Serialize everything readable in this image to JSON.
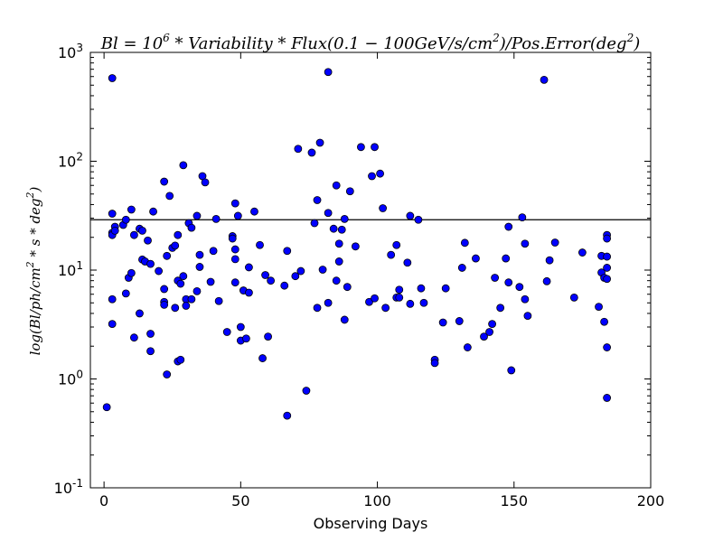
{
  "chart_data": {
    "type": "scatter",
    "title": "Bl=10^6*Variability*Flux(0.1-100GeV/s/cm^2)/Pos.Error(deg^2)",
    "title_parts": {
      "a": "Bl = 10",
      "a_sup": "6",
      "b": " * Variability * Flux(0.1 − 100GeV/s/cm",
      "b_sup": "2",
      "c": ")/Pos.Error(deg",
      "c_sup": "2",
      "d": ")"
    },
    "xlabel": "Observing Days",
    "ylabel": "log(Bl/ph/cm^2*s*deg^2)",
    "ylabel_parts": {
      "a": "log(Bl/ph/cm",
      "a_sup": "2",
      "b": " * s * deg",
      "b_sup": "2",
      "c": ")"
    },
    "xlim": [
      -5,
      200
    ],
    "ylim": [
      0.1,
      1000
    ],
    "yscale": "log",
    "xticks": [
      {
        "v": 0,
        "label": "0"
      },
      {
        "v": 50,
        "label": "50"
      },
      {
        "v": 100,
        "label": "100"
      },
      {
        "v": 150,
        "label": "150"
      },
      {
        "v": 200,
        "label": "200"
      }
    ],
    "yticks": [
      {
        "v": 0.1,
        "base": "10",
        "exp": "-1"
      },
      {
        "v": 1,
        "base": "10",
        "exp": "0"
      },
      {
        "v": 10,
        "base": "10",
        "exp": "1"
      },
      {
        "v": 100,
        "base": "10",
        "exp": "2"
      },
      {
        "v": 1000,
        "base": "10",
        "exp": "3"
      }
    ],
    "hline": 29,
    "marker_color": "#0000ff",
    "line_color": "#000000",
    "points": [
      [
        1,
        0.55
      ],
      [
        3,
        580
      ],
      [
        3,
        33
      ],
      [
        3,
        22
      ],
      [
        3,
        21
      ],
      [
        3,
        5.4
      ],
      [
        3,
        3.2
      ],
      [
        4,
        25
      ],
      [
        4,
        23
      ],
      [
        7,
        26
      ],
      [
        8,
        29
      ],
      [
        8,
        6.1
      ],
      [
        9,
        8.5
      ],
      [
        10,
        9.4
      ],
      [
        10,
        36
      ],
      [
        11,
        21
      ],
      [
        11,
        2.4
      ],
      [
        13,
        24
      ],
      [
        13,
        4.0
      ],
      [
        14,
        23
      ],
      [
        14,
        12.5
      ],
      [
        15,
        12
      ],
      [
        16,
        18.7
      ],
      [
        17,
        11.4
      ],
      [
        17,
        2.6
      ],
      [
        17,
        1.8
      ],
      [
        18,
        34.5
      ],
      [
        20,
        9.8
      ],
      [
        22,
        65
      ],
      [
        22,
        6.7
      ],
      [
        22,
        5.1
      ],
      [
        22,
        4.8
      ],
      [
        23,
        1.1
      ],
      [
        23,
        13.5
      ],
      [
        24,
        48
      ],
      [
        25,
        16
      ],
      [
        26,
        16.8
      ],
      [
        26,
        4.5
      ],
      [
        27,
        21
      ],
      [
        27,
        8
      ],
      [
        27,
        1.45
      ],
      [
        28,
        7.5
      ],
      [
        28,
        1.5
      ],
      [
        29,
        92
      ],
      [
        29,
        8.8
      ],
      [
        30,
        5.4
      ],
      [
        30,
        4.7
      ],
      [
        31,
        27
      ],
      [
        32,
        5.4
      ],
      [
        32,
        24.5
      ],
      [
        34,
        31.5
      ],
      [
        34,
        6.4
      ],
      [
        35,
        10.7
      ],
      [
        35,
        13.8
      ],
      [
        36,
        73
      ],
      [
        37,
        64
      ],
      [
        39,
        7.8
      ],
      [
        40,
        15
      ],
      [
        41,
        29.5
      ],
      [
        42,
        5.2
      ],
      [
        45,
        2.7
      ],
      [
        47,
        20.5
      ],
      [
        47,
        19.5
      ],
      [
        48,
        41
      ],
      [
        48,
        15.5
      ],
      [
        48,
        12.6
      ],
      [
        48,
        7.7
      ],
      [
        49,
        31.5
      ],
      [
        50,
        3.0
      ],
      [
        50,
        2.25
      ],
      [
        51,
        6.5
      ],
      [
        52,
        2.35
      ],
      [
        53,
        10.6
      ],
      [
        53,
        6.2
      ],
      [
        55,
        34.5
      ],
      [
        57,
        17
      ],
      [
        58,
        1.55
      ],
      [
        59,
        9
      ],
      [
        60,
        2.45
      ],
      [
        61,
        8
      ],
      [
        66,
        7.2
      ],
      [
        67,
        0.46
      ],
      [
        67,
        15
      ],
      [
        70,
        8.8
      ],
      [
        71,
        130
      ],
      [
        72,
        9.8
      ],
      [
        74,
        0.78
      ],
      [
        76,
        120
      ],
      [
        77,
        27
      ],
      [
        78,
        44
      ],
      [
        78,
        4.5
      ],
      [
        79,
        148
      ],
      [
        80,
        10.1
      ],
      [
        82,
        660
      ],
      [
        82,
        33.5
      ],
      [
        82,
        5
      ],
      [
        84,
        24
      ],
      [
        85,
        8
      ],
      [
        85,
        60
      ],
      [
        86,
        17.5
      ],
      [
        86,
        12
      ],
      [
        87,
        23.5
      ],
      [
        88,
        29.5
      ],
      [
        88,
        3.5
      ],
      [
        89,
        7
      ],
      [
        90,
        53
      ],
      [
        92,
        16.5
      ],
      [
        94,
        135
      ],
      [
        97,
        5.1
      ],
      [
        98,
        73
      ],
      [
        99,
        135
      ],
      [
        99,
        5.5
      ],
      [
        101,
        77
      ],
      [
        102,
        37
      ],
      [
        103,
        4.5
      ],
      [
        105,
        13.8
      ],
      [
        107,
        17
      ],
      [
        107,
        5.6
      ],
      [
        108,
        6.6
      ],
      [
        108,
        5.6
      ],
      [
        111,
        11.7
      ],
      [
        112,
        31.5
      ],
      [
        112,
        4.9
      ],
      [
        115,
        29
      ],
      [
        116,
        6.8
      ],
      [
        117,
        5
      ],
      [
        121,
        1.5
      ],
      [
        121,
        1.4
      ],
      [
        124,
        3.3
      ],
      [
        125,
        6.8
      ],
      [
        130,
        3.4
      ],
      [
        131,
        10.5
      ],
      [
        132,
        17.8
      ],
      [
        133,
        1.95
      ],
      [
        136,
        12.8
      ],
      [
        139,
        2.45
      ],
      [
        141,
        2.7
      ],
      [
        142,
        3.2
      ],
      [
        143,
        8.5
      ],
      [
        145,
        4.5
      ],
      [
        147,
        12.8
      ],
      [
        148,
        25
      ],
      [
        148,
        7.7
      ],
      [
        149,
        1.2
      ],
      [
        152,
        7
      ],
      [
        153,
        30.5
      ],
      [
        154,
        17.5
      ],
      [
        154,
        5.4
      ],
      [
        155,
        3.8
      ],
      [
        161,
        560
      ],
      [
        162,
        7.9
      ],
      [
        163,
        12.3
      ],
      [
        165,
        17.9
      ],
      [
        172,
        5.6
      ],
      [
        175,
        14.5
      ],
      [
        181,
        4.6
      ],
      [
        182,
        13.5
      ],
      [
        182,
        9.5
      ],
      [
        183,
        8.5
      ],
      [
        183,
        3.35
      ],
      [
        184,
        21
      ],
      [
        184,
        19.5
      ],
      [
        184,
        13.3
      ],
      [
        184,
        10.5
      ],
      [
        184,
        8.3
      ],
      [
        184,
        1.95
      ],
      [
        184,
        0.67
      ]
    ]
  }
}
